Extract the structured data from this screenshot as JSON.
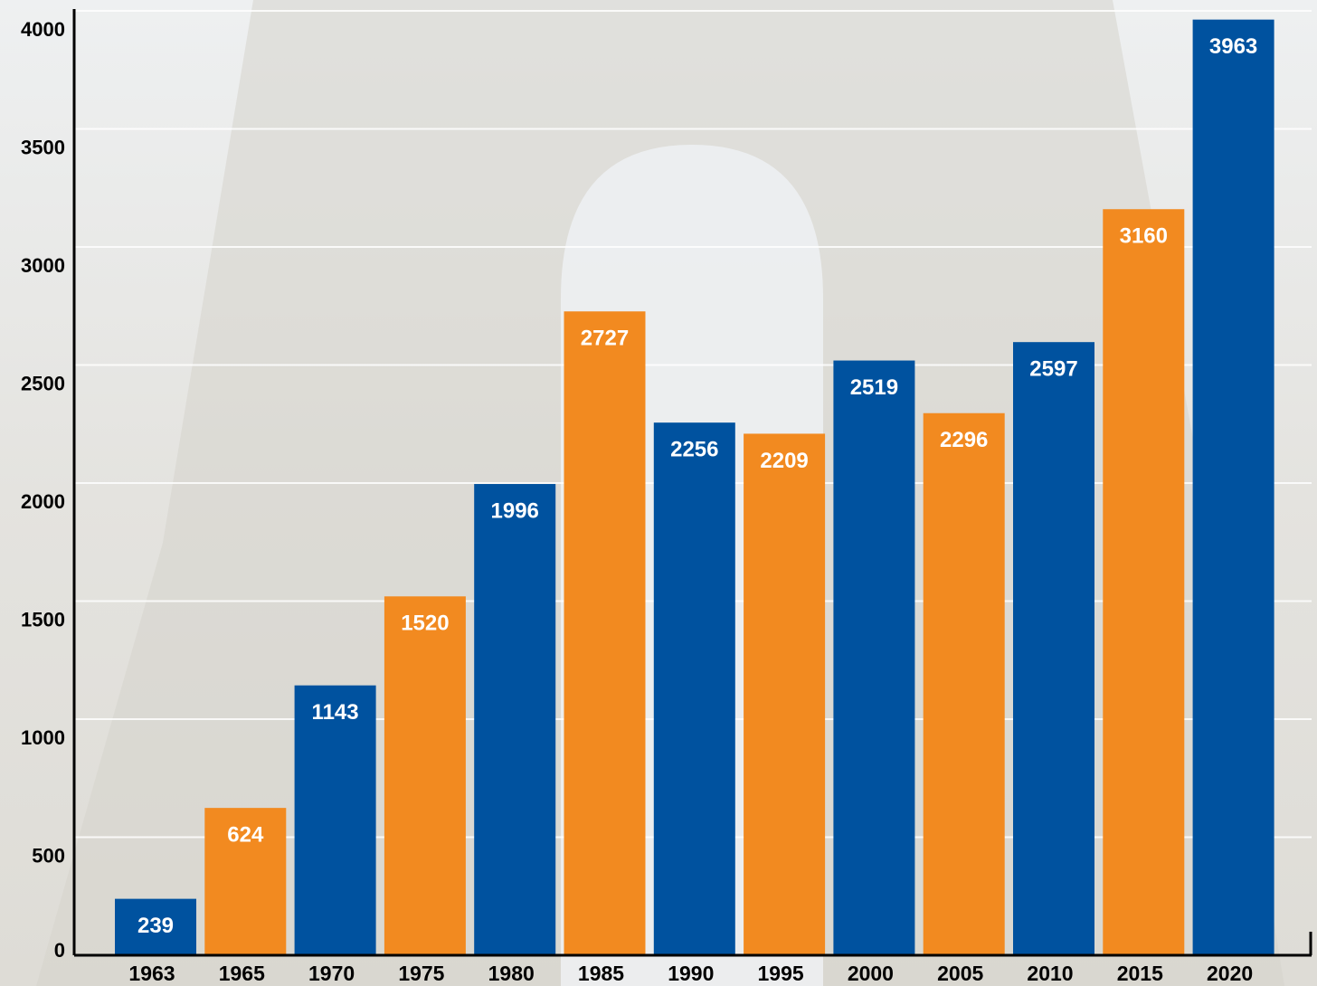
{
  "chart_data": {
    "type": "bar",
    "categories": [
      "1963",
      "1965",
      "1970",
      "1975",
      "1980",
      "1985",
      "1990",
      "1995",
      "2000",
      "2005",
      "2010",
      "2015",
      "2020"
    ],
    "values": [
      239,
      624,
      1143,
      1520,
      1996,
      2727,
      2256,
      2209,
      2519,
      2296,
      2597,
      3160,
      3963
    ],
    "colors": [
      "#00529f",
      "#f28a20",
      "#00529f",
      "#f28a20",
      "#00529f",
      "#f28a20",
      "#00529f",
      "#f28a20",
      "#00529f",
      "#f28a20",
      "#00529f",
      "#f28a20",
      "#00529f"
    ],
    "ylim": [
      0,
      4000
    ],
    "yticks": [
      0,
      500,
      1000,
      1500,
      2000,
      2500,
      3000,
      3500,
      4000
    ],
    "grid": true
  }
}
